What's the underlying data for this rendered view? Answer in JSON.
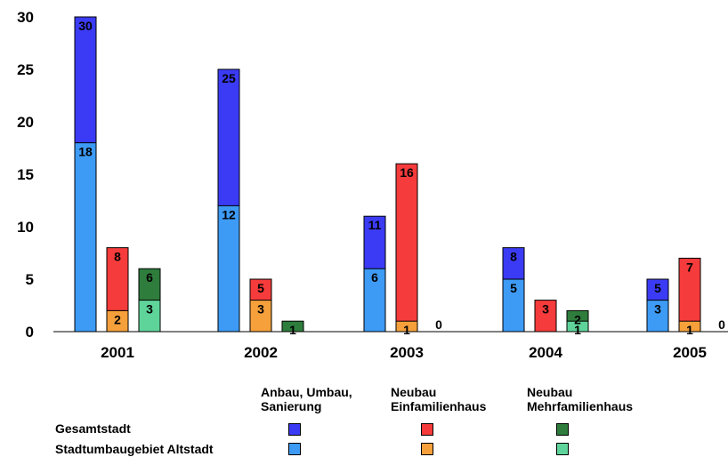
{
  "chart_data": {
    "type": "bar",
    "categories": [
      "2001",
      "2002",
      "2003",
      "2004",
      "2005"
    ],
    "ylim": [
      0,
      30
    ],
    "yticks": [
      0,
      5,
      10,
      15,
      20,
      25,
      30
    ],
    "zero_labels": [
      "0"
    ],
    "groups": [
      {
        "name": "Anbau, Umbau, Sanierung",
        "overall": [
          30,
          25,
          11,
          8,
          5
        ],
        "altstadt": [
          18,
          12,
          6,
          5,
          3
        ]
      },
      {
        "name": "Neubau Einfamilienhaus",
        "overall": [
          8,
          5,
          16,
          3,
          7
        ],
        "altstadt": [
          2,
          3,
          1,
          null,
          1
        ]
      },
      {
        "name": "Neubau Mehrfamilienhaus",
        "overall": [
          6,
          1,
          0,
          2,
          0
        ],
        "altstadt": [
          3,
          null,
          null,
          1,
          null
        ]
      }
    ],
    "rows": [
      "Gesamtstadt",
      "Stadtumbaugebiet Altstadt"
    ],
    "legend_heads": [
      [
        "Anbau, Umbau,",
        "Sanierung"
      ],
      [
        "Neubau",
        "Einfamilienhaus"
      ],
      [
        "Neubau",
        "Mehrfamilienhaus"
      ]
    ],
    "colors": {
      "overall": [
        "#3b3bf5",
        "#f53b3b",
        "#2e7d3c"
      ],
      "altstadt": [
        "#3d9af5",
        "#f5a03b",
        "#5fd49a"
      ]
    }
  }
}
